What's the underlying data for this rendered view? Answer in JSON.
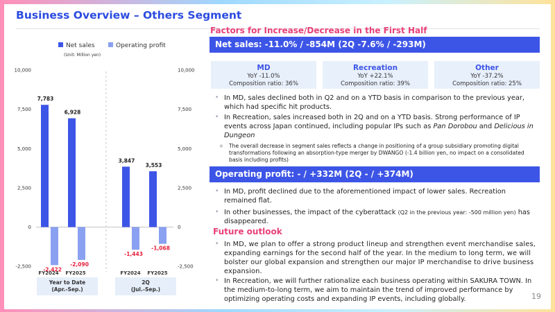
{
  "header": {
    "title": "Business Overview – Others Segment"
  },
  "chart_data": {
    "type": "bar",
    "legend": {
      "items": [
        "Net sales",
        "Operating profit"
      ],
      "placement": "top"
    },
    "unit_note": "(Unit: Million yen)",
    "y_ticks": [
      "10,000",
      "7,500",
      "5,000",
      "2,500",
      "0",
      "-2,500"
    ],
    "tick_values": [
      10000,
      7500,
      5000,
      2500,
      0,
      -2500
    ],
    "ylim": [
      -2500,
      10000
    ],
    "categories": [
      "FY2024",
      "FY2025",
      "FY2024",
      "FY2025"
    ],
    "groups": [
      {
        "label": "Year to Date\n(Apr.-Sep.)",
        "category_index": [
          0,
          1
        ]
      },
      {
        "label": "2Q\n(Jul.-Sep.)",
        "category_index": [
          2,
          3
        ]
      }
    ],
    "series": [
      {
        "name": "Net sales",
        "values": [
          7783,
          6928,
          3847,
          3553
        ],
        "labels": [
          "7,783",
          "6,928",
          "3,847",
          "3,553"
        ]
      },
      {
        "name": "Operating profit",
        "values": [
          -2422,
          -2090,
          -1443,
          -1068
        ],
        "labels": [
          "-2,422",
          "-2,090",
          "-1,443",
          "-1,068"
        ]
      }
    ],
    "colors": {
      "net_sales": "#3d55e6",
      "operating_profit": "#8aa0f0",
      "negative_label": "#e8203c",
      "axis_text": "#333333",
      "group_box": "#e6eefa"
    }
  },
  "right": {
    "factors_heading": "Factors for Increase/Decrease in the First Half",
    "net_sales_banner": "Net sales: -11.0% / -854M (2Q -7.6% / -293M)",
    "boxes": [
      {
        "title": "MD",
        "line1": "YoY -11.0%",
        "line2": "Composition ratio: 36%"
      },
      {
        "title": "Recreation",
        "line1": "YoY +22.1%",
        "line2": "Composition ratio: 39%"
      },
      {
        "title": "Other",
        "line1": "YoY -37.2%",
        "line2": "Composition ratio: 25%"
      }
    ],
    "bullets1": {
      "md": "In MD, sales declined both in Q2 and on a YTD basis in comparison to the previous year, which had specific hit products.",
      "rec_a": "In Recreation, sales increased both in 2Q and on a YTD basis. Strong performance of IP events across Japan continued, including popular IPs such as ",
      "rec_ip1": "Pan Dorobou",
      "rec_and": " and ",
      "rec_ip2": "Delicious in Dungeon",
      "note": "The overall decrease in segment sales reflects a change in positioning of a group subsidiary promoting digital transformations following an absorption-type merger by DWANGO (-1.4 billion yen, no impact on a consolidated basis including profits)"
    },
    "op_banner": "Operating profit: - / +332M (2Q - / +374M)",
    "bullets2": {
      "md": "In MD, profit declined due to the aforementioned impact of lower sales. Recreation remained flat.",
      "other_a": "In other businesses, the impact of the cyberattack ",
      "other_note": "(Q2 in the previous year: -500 million yen)",
      "other_b": " has disappeared."
    },
    "outlook_heading": "Future outlook",
    "outlook": {
      "md": "In MD, we plan to offer a strong product lineup and strengthen event merchandise sales, expanding earnings for the second half of the year. In the medium to long term, we will bolster our global expansion and strengthen our major IP merchandise to drive business expansion.",
      "rec": "In Recreation, we will further rationalize each business operating within SAKURA TOWN. In the medium-to-long term, we aim to maintain the trend of improved performance by optimizing operating costs and expanding IP events, including globally."
    }
  },
  "footer": {
    "page_number": "19"
  }
}
